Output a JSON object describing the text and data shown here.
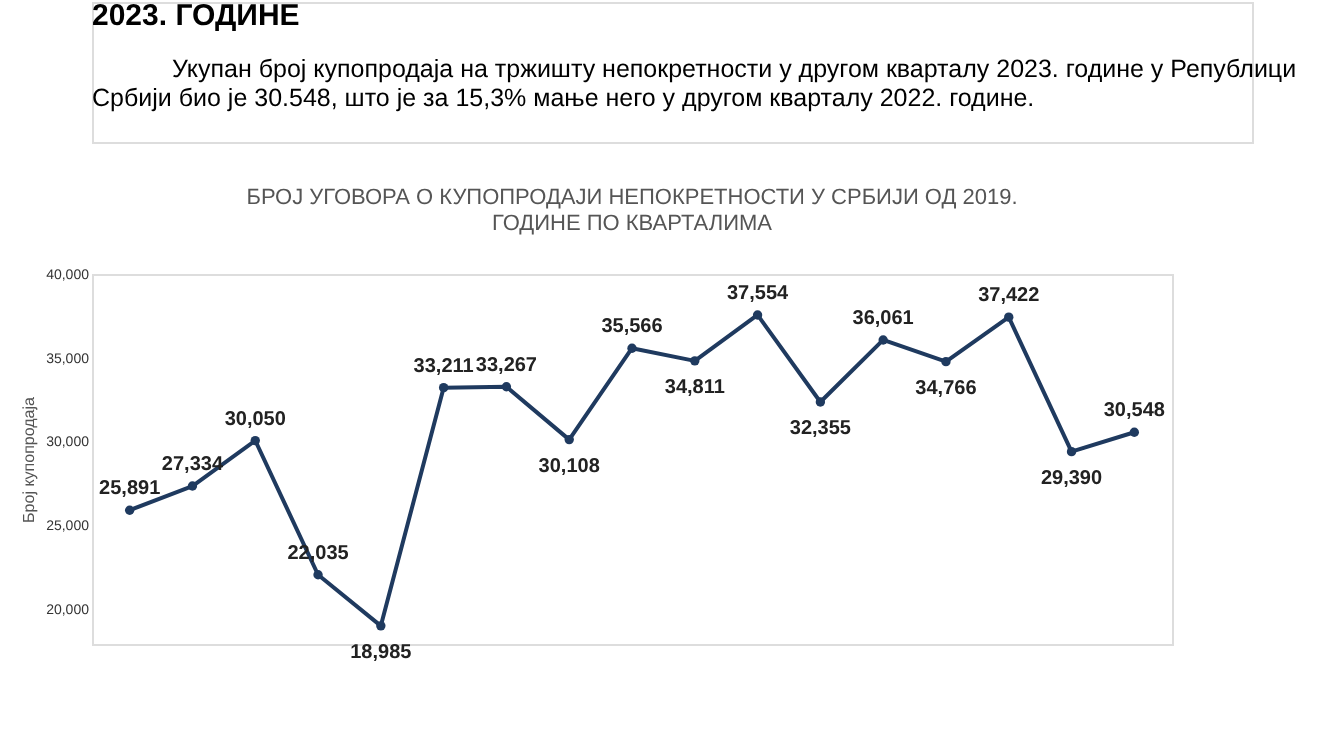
{
  "chart_data": {
    "type": "line",
    "title": "БРОЈ УГОВОРА О КУПОПРОДАЈИ НЕПОКРЕТНОСТИ У СРБИЈИ ОД 2019.\nГОДИНЕ ПО КВАРТАЛИМА",
    "ylabel": "Број купопродаја",
    "annotations": [
      "2023. ГОДИНЕ",
      "Укупан број купопродаја на тржишту непокретности у другом кварталу 2023. године у Републици Србији био је 30.548, што је за 15,3% мање него у другом кварталу 2022. године."
    ],
    "categories": [
      null,
      null,
      null,
      null,
      null,
      null,
      null,
      null,
      null,
      null,
      null,
      null,
      null,
      null,
      null,
      null,
      null
    ],
    "series": [
      {
        "color": "#1f3a5f",
        "values": [
          25891,
          27334,
          30050,
          22035,
          18985,
          33211,
          33267,
          30108,
          35566,
          34811,
          37554,
          32355,
          36061,
          34766,
          37422,
          29390,
          30548
        ],
        "value_labels": [
          "25,891",
          "27,334",
          "30,050",
          "22,035",
          "18,985",
          "33,211",
          "33,267",
          "30,108",
          "35,566",
          "34,811",
          "37,554",
          "32,355",
          "36,061",
          "34,766",
          "37,422",
          "29,390",
          "30,548"
        ]
      }
    ],
    "ylim": [
      17900,
      40000
    ],
    "yticks": [
      {
        "value": 20000,
        "label": "20,000"
      },
      {
        "value": 25000,
        "label": "25,000"
      },
      {
        "value": 30000,
        "label": "30,000"
      },
      {
        "value": 35000,
        "label": "35,000"
      },
      {
        "value": 40000,
        "label": "40,000"
      }
    ],
    "tick_labels": "y",
    "grid": false,
    "marker": "circle",
    "line_style": "solid"
  }
}
